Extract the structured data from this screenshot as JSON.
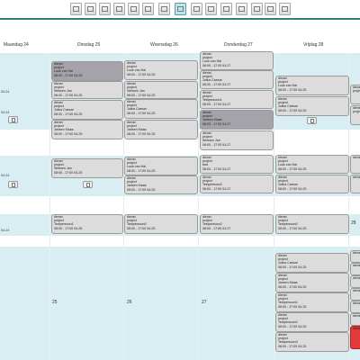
{
  "days": [
    "Maandag 24",
    "Dinsdag 25",
    "Woensdag 26",
    "Donderdag 27",
    "Vrijdag 28"
  ],
  "day_numbers": [
    "25",
    "26",
    "27",
    "28"
  ],
  "time_fragment": "04-24",
  "toolbar_icons": [
    "home-icon",
    "calendar-day-icon",
    "calendar-3day-icon",
    "calendar-week-icon",
    "calendar-icon",
    "calendar-grid-icon",
    "month-view-icon",
    "list-view-icon",
    "table-view-icon",
    "print-icon",
    "edit-icon",
    "refresh-icon",
    "settings-icon"
  ],
  "lines": {
    "l_dienst": "dienst",
    "l_project": "project",
    "l_test": "test",
    "l_time": "08:00 - 17:00 04-25",
    "l_time2": "08:00 - 17:00 04-27",
    "p_luuk": "Luuk van Hal",
    "p_wessen": "Wessen Jan",
    "p_julius": "Julius Caesar",
    "p_jansen": "Jansen Klaas",
    "p_test2": "Testpersoon2",
    "p_test1": "Testpersoon1",
    "p_test3": "Testpersoon3"
  }
}
